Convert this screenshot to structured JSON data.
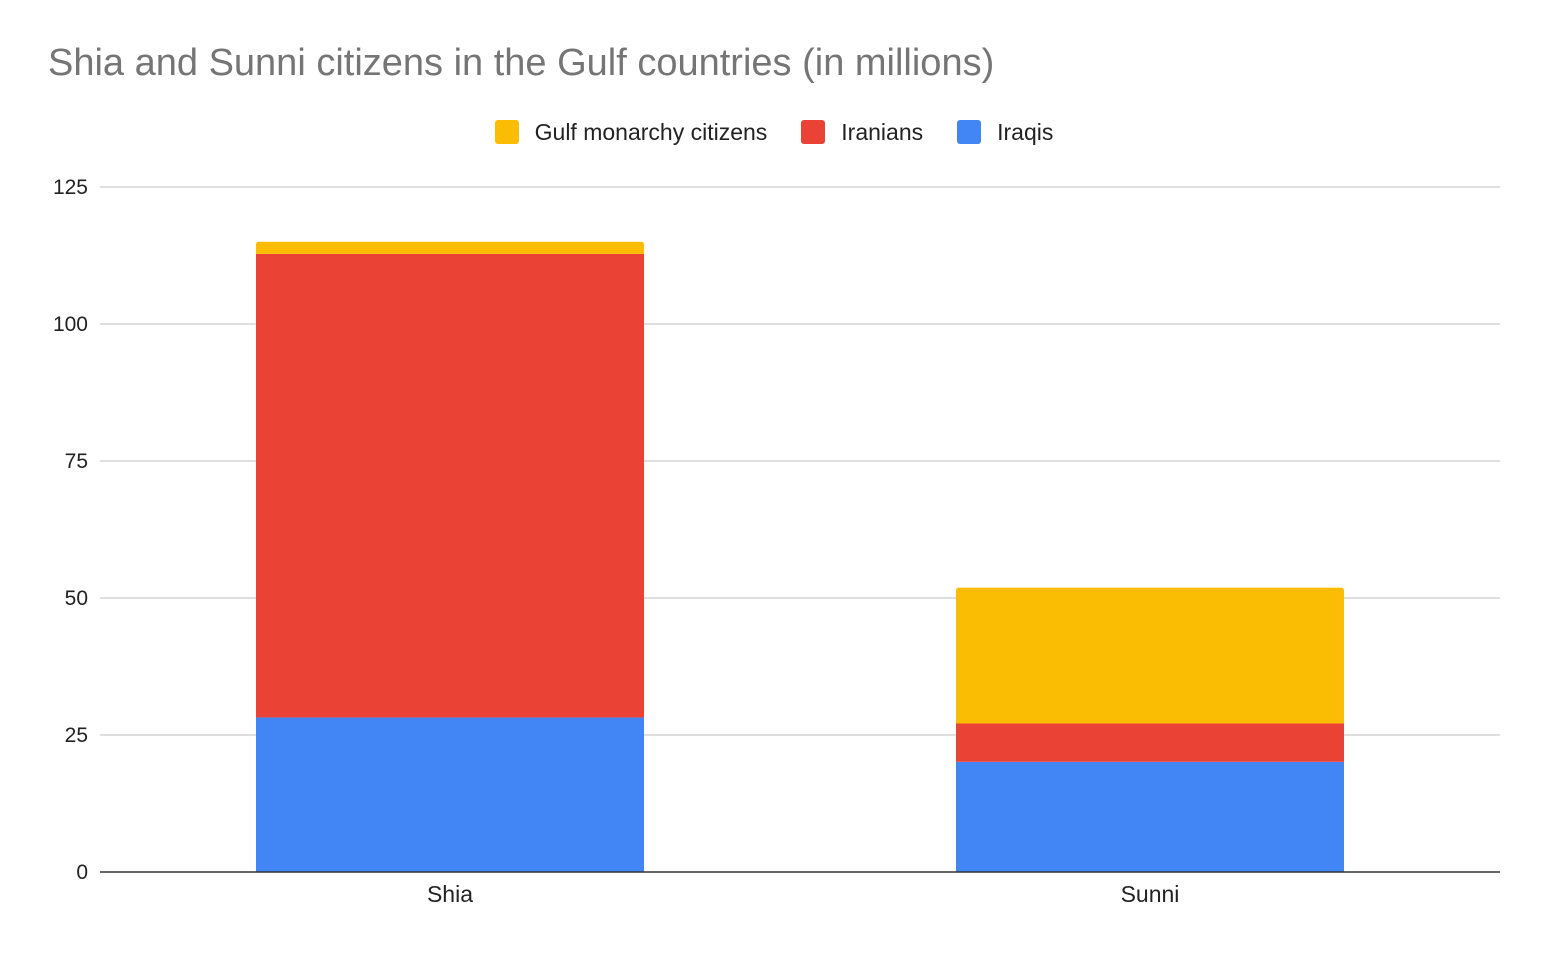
{
  "chart_data": {
    "type": "bar",
    "stacked": true,
    "title": "Shia and Sunni citizens in the Gulf countries (in millions)",
    "xlabel": "",
    "ylabel": "",
    "categories": [
      "Shia",
      "Sunni"
    ],
    "series": [
      {
        "name": "Iraqis",
        "values": [
          28.2,
          20.1
        ],
        "color": "#4285F4"
      },
      {
        "name": "Iranians",
        "values": [
          84.6,
          7.0
        ],
        "color": "#EA4335"
      },
      {
        "name": "Gulf monarchy citizens",
        "values": [
          2.2,
          24.8
        ],
        "color": "#FBBC04"
      }
    ],
    "legend_order": [
      "Gulf monarchy citizens",
      "Iranians",
      "Iraqis"
    ],
    "legend_position": "top-center",
    "ylim": [
      0,
      125
    ],
    "yticks": [
      0,
      25,
      50,
      75,
      100,
      125
    ],
    "grid": true
  }
}
